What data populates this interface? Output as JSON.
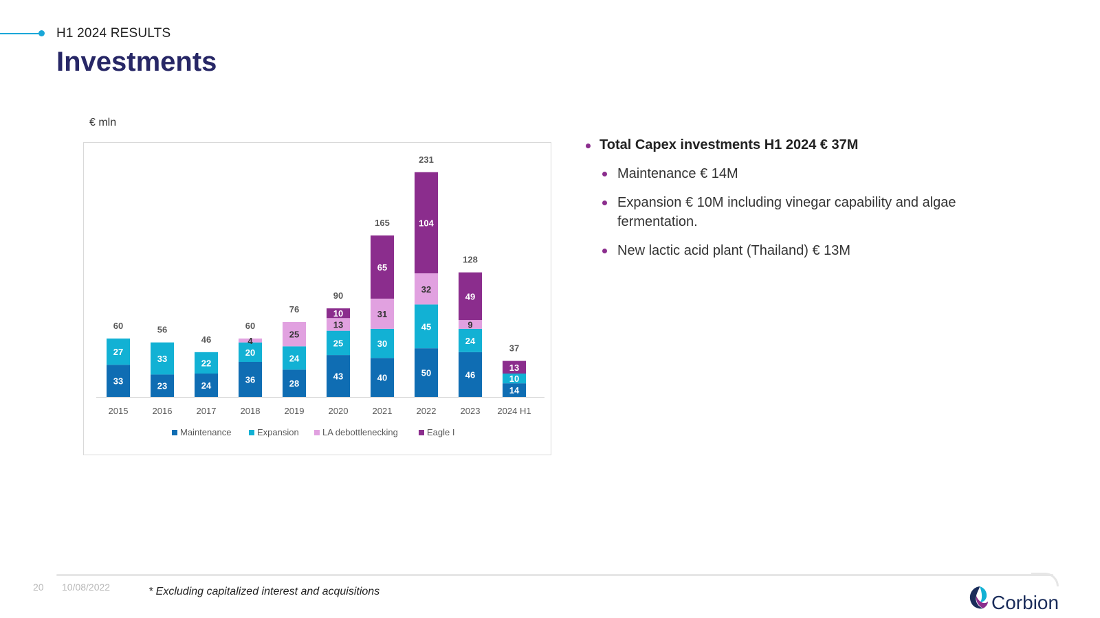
{
  "header": {
    "section": "H1 2024 RESULTS",
    "title": "Investments"
  },
  "colors": {
    "accent": "#1aa7d8",
    "title": "#272766",
    "bullet": "#8b2d8d"
  },
  "chart_data": {
    "type": "bar",
    "stacked": true,
    "unit_label": "€ mln",
    "categories": [
      "2015",
      "2016",
      "2017",
      "2018",
      "2019",
      "2020",
      "2021",
      "2022",
      "2023",
      "2024 H1"
    ],
    "series": [
      {
        "name": "Maintenance",
        "color": "#0f6db3",
        "values": [
          33,
          23,
          24,
          36,
          28,
          43,
          40,
          50,
          46,
          14
        ]
      },
      {
        "name": "Expansion",
        "color": "#12b1d4",
        "values": [
          27,
          33,
          22,
          20,
          24,
          25,
          30,
          45,
          24,
          10
        ]
      },
      {
        "name": "LA debottlenecking",
        "color": "#e1a1e0",
        "values": [
          0,
          0,
          0,
          4,
          25,
          13,
          31,
          32,
          9,
          0
        ]
      },
      {
        "name": "Eagle I",
        "color": "#8b2d8d",
        "values": [
          0,
          0,
          0,
          0,
          0,
          10,
          65,
          104,
          49,
          13
        ]
      }
    ],
    "totals": [
      60,
      56,
      46,
      60,
      76,
      90,
      165,
      231,
      128,
      37
    ],
    "ylim": [
      0,
      240
    ],
    "grid": false,
    "legend": "bottom"
  },
  "bullets": {
    "main": "Total Capex investments H1 2024 € 37M",
    "sub": [
      "Maintenance € 14M",
      "Expansion € 10M including vinegar capability and algae fermentation.",
      "New lactic acid plant (Thailand) € 13M"
    ]
  },
  "footer": {
    "page_number": "20",
    "date": "10/08/2022",
    "footnote": "* Excluding capitalized interest and acquisitions"
  },
  "logo": {
    "name": "Corbion"
  }
}
